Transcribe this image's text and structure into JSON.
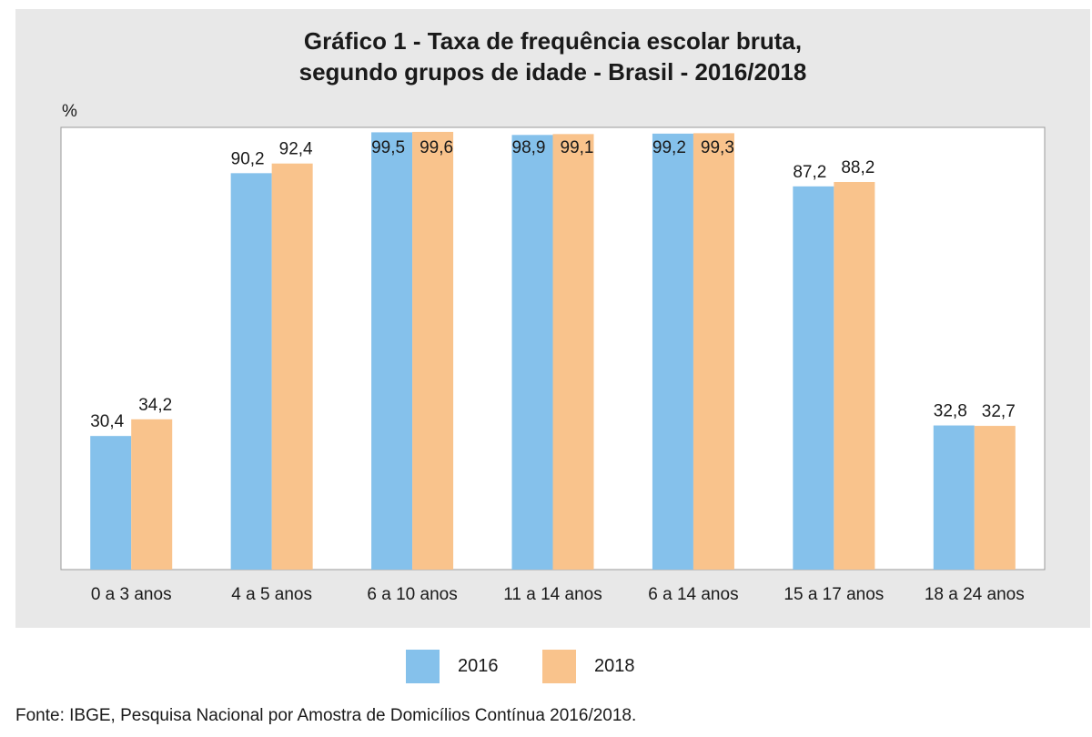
{
  "title_line1": "Gráfico 1 - Taxa de frequência escolar bruta,",
  "title_line2": "segundo grupos de idade - Brasil - 2016/2018",
  "unit": "%",
  "source": "Fonte: IBGE, Pesquisa Nacional por Amostra de Domicílios Contínua 2016/2018.",
  "colors": {
    "panel": "#e8e8e8",
    "plot": "#ffffff",
    "s2016": "#85c1eb",
    "s2018": "#f9c38c"
  },
  "chart_data": {
    "type": "bar",
    "title": "Gráfico 1 - Taxa de frequência escolar bruta, segundo grupos de idade - Brasil - 2016/2018",
    "ylabel": "%",
    "ylim": [
      0,
      100
    ],
    "grid": false,
    "legend_position": "bottom",
    "categories": [
      "0 a 3 anos",
      "4 a 5 anos",
      "6 a 10 anos",
      "11 a 14 anos",
      "6 a 14 anos",
      "15 a 17 anos",
      "18 a 24 anos"
    ],
    "series": [
      {
        "name": "2016",
        "values": [
          30.4,
          90.2,
          99.5,
          98.9,
          99.2,
          87.2,
          32.8
        ],
        "labels": [
          "30,4",
          "90,2",
          "99,5",
          "98,9",
          "99,2",
          "87,2",
          "32,8"
        ],
        "color": "#85c1eb"
      },
      {
        "name": "2018",
        "values": [
          34.2,
          92.4,
          99.6,
          99.1,
          99.3,
          88.2,
          32.7
        ],
        "labels": [
          "34,2",
          "92,4",
          "99,6",
          "99,1",
          "99,3",
          "88,2",
          "32,7"
        ],
        "color": "#f9c38c"
      }
    ]
  }
}
